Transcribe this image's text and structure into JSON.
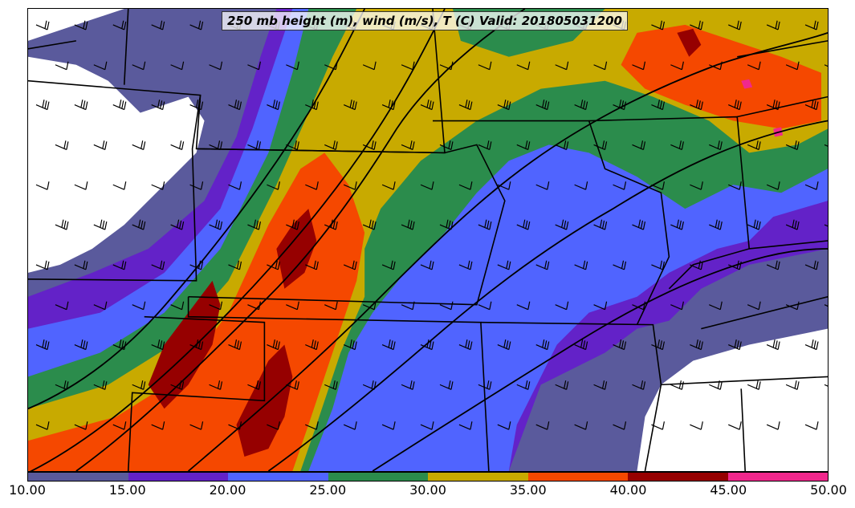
{
  "title": "250 mb height (m), wind (m/s), T (C) Valid: 201805031200",
  "legend": {
    "ticks": [
      "10.00",
      "15.00",
      "20.00",
      "25.00",
      "30.00",
      "35.00",
      "40.00",
      "45.00",
      "50.00"
    ],
    "bins": [
      {
        "min": 10,
        "max": 15,
        "color": "#5a5a9c"
      },
      {
        "min": 15,
        "max": 20,
        "color": "#6322c8"
      },
      {
        "min": 20,
        "max": 25,
        "color": "#5064ff"
      },
      {
        "min": 25,
        "max": 30,
        "color": "#2b8c4c"
      },
      {
        "min": 30,
        "max": 35,
        "color": "#c8aa00"
      },
      {
        "min": 35,
        "max": 40,
        "color": "#f54800"
      },
      {
        "min": 40,
        "max": 45,
        "color": "#960000"
      },
      {
        "min": 45,
        "max": 50,
        "color": "#f0288c"
      }
    ]
  }
}
